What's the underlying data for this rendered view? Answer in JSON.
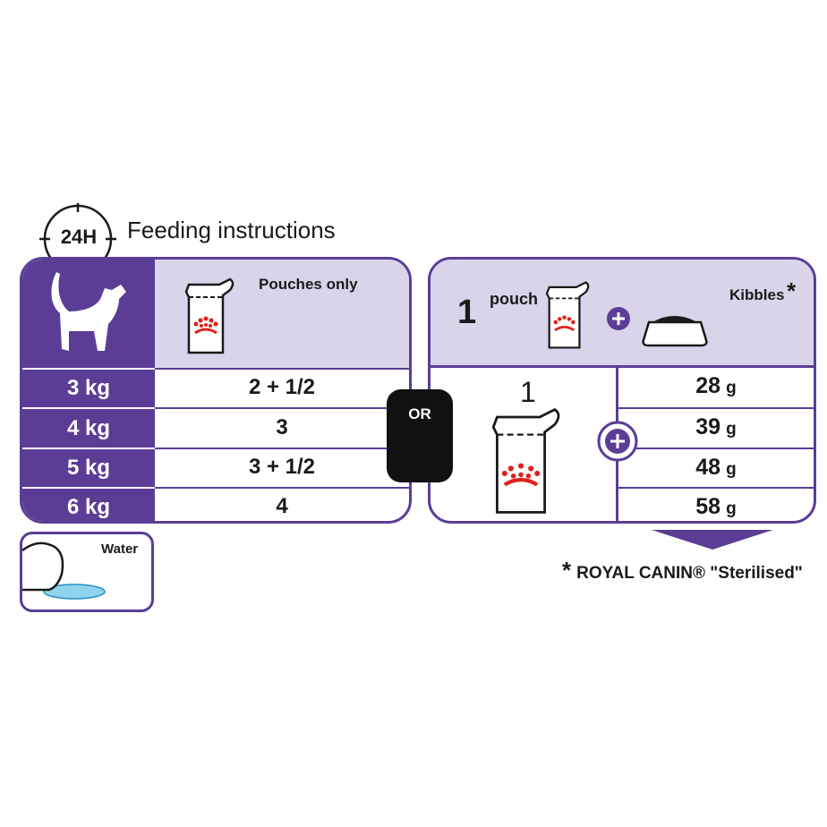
{
  "title": {
    "badge": "24H",
    "text": "Feeding instructions"
  },
  "colors": {
    "purple": "#5b3d96",
    "lavender": "#d9d4ea",
    "crown_red": "#e0201b",
    "or_box": "#111111",
    "water": "#8fd3ee"
  },
  "left": {
    "header": "Pouches only",
    "rows": [
      {
        "weight": "3 kg",
        "pouches": "2 + 1/2"
      },
      {
        "weight": "4 kg",
        "pouches": "3"
      },
      {
        "weight": "5 kg",
        "pouches": "3 + 1/2"
      },
      {
        "weight": "6 kg",
        "pouches": "4"
      }
    ]
  },
  "or_label": "OR",
  "right": {
    "count": "1",
    "pouch_label": "pouch",
    "kibbles_label": "Kibbles",
    "asterisk": "*",
    "pouch_count": "1",
    "kibbles": [
      {
        "v": "28",
        "u": "g"
      },
      {
        "v": "39",
        "u": "g"
      },
      {
        "v": "48",
        "u": "g"
      },
      {
        "v": "58",
        "u": "g"
      }
    ]
  },
  "water_label": "Water",
  "footnote": {
    "asterisk": "*",
    "text": "ROYAL CANIN® \"Sterilised\""
  },
  "icons": [
    "clock-icon",
    "cat-icon",
    "pouch-icon",
    "plus-icon",
    "bowl-icon",
    "water-icon",
    "arrow-down-icon"
  ]
}
